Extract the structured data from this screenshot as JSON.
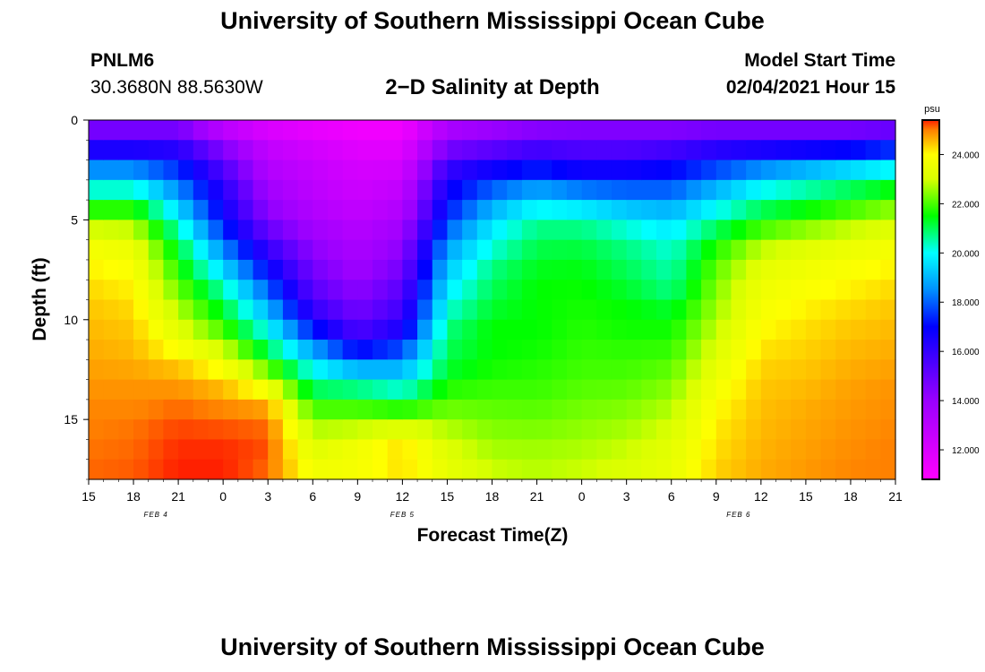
{
  "header": {
    "title": "University of Southern Mississippi Ocean Cube",
    "station_id": "PNLM6",
    "station_coords": "30.3680N 88.5630W",
    "plot_title": "2−D Salinity at Depth",
    "model_start_label": "Model Start Time",
    "model_start_value": "02/04/2021 Hour 15"
  },
  "footer": {
    "title": "University of Southern Mississippi Ocean Cube"
  },
  "chart_data": {
    "type": "heatmap",
    "title": "2-D Salinity at Depth",
    "xlabel": "Forecast Time(Z)",
    "ylabel": "Depth (ft)",
    "x_tick_labels": [
      "15",
      "18",
      "21",
      "0",
      "3",
      "6",
      "9",
      "12",
      "15",
      "18",
      "21",
      "0",
      "3",
      "6",
      "9",
      "12",
      "15",
      "18",
      "21"
    ],
    "date_labels": [
      {
        "label": "FEB 4",
        "tick_index": 1.5
      },
      {
        "label": "FEB 5",
        "tick_index": 7
      },
      {
        "label": "FEB 6",
        "tick_index": 14.5
      }
    ],
    "x_range_hours": [
      0,
      54
    ],
    "ylim": [
      0,
      18
    ],
    "y_ticks": [
      0,
      5,
      10,
      15
    ],
    "colorbar": {
      "unit": "psu",
      "range": [
        10.8,
        25.4
      ],
      "ticks": [
        "12.000",
        "14.000",
        "16.000",
        "18.000",
        "20.000",
        "22.000",
        "24.000"
      ],
      "tick_values": [
        12,
        14,
        16,
        18,
        20,
        22,
        24
      ],
      "colors": [
        {
          "v": 10.8,
          "c": "#ff00ff"
        },
        {
          "v": 14.0,
          "c": "#9a00ff"
        },
        {
          "v": 17.0,
          "c": "#0000ff"
        },
        {
          "v": 18.5,
          "c": "#0090ff"
        },
        {
          "v": 20.0,
          "c": "#00ffff"
        },
        {
          "v": 21.5,
          "c": "#00ff00"
        },
        {
          "v": 23.0,
          "c": "#d8ff00"
        },
        {
          "v": 24.0,
          "c": "#ffff00"
        },
        {
          "v": 25.0,
          "c": "#ff8000"
        },
        {
          "v": 25.4,
          "c": "#ff2000"
        }
      ]
    },
    "salinity_profiles": {
      "depths_ft": [
        0,
        1,
        2,
        3,
        4,
        5,
        6,
        7,
        8,
        9,
        10,
        11,
        12,
        13,
        14,
        15,
        16,
        17,
        18
      ],
      "profiles": [
        {
          "hour": 0,
          "values": [
            14.0,
            15.5,
            17.5,
            19.5,
            21.0,
            22.5,
            23.5,
            24.0,
            24.2,
            24.4,
            24.5,
            24.6,
            24.7,
            24.8,
            24.9,
            25.0,
            25.0,
            25.1,
            25.1
          ]
        },
        {
          "hour": 3,
          "values": [
            14.0,
            15.5,
            17.5,
            19.5,
            21.0,
            22.5,
            23.3,
            23.8,
            24.0,
            24.2,
            24.4,
            24.5,
            24.6,
            24.8,
            24.9,
            25.0,
            25.1,
            25.1,
            25.2
          ]
        },
        {
          "hour": 6,
          "values": [
            14.0,
            15.5,
            17.0,
            18.0,
            19.0,
            20.0,
            21.0,
            21.5,
            22.0,
            22.5,
            23.0,
            23.5,
            24.3,
            24.7,
            25.0,
            25.2,
            25.3,
            25.4,
            25.4
          ]
        },
        {
          "hour": 9,
          "values": [
            12.0,
            14.0,
            15.0,
            16.0,
            16.5,
            17.0,
            18.0,
            19.0,
            20.0,
            21.0,
            21.5,
            22.5,
            23.5,
            24.3,
            24.8,
            25.1,
            25.3,
            25.4,
            25.4
          ]
        },
        {
          "hour": 12,
          "values": [
            11.5,
            12.5,
            13.0,
            13.5,
            14.0,
            14.5,
            15.5,
            16.5,
            17.5,
            18.5,
            19.5,
            20.5,
            21.5,
            23.0,
            24.5,
            25.0,
            25.2,
            25.2,
            25.0
          ]
        },
        {
          "hour": 15,
          "values": [
            11.2,
            12.0,
            12.5,
            12.8,
            13.0,
            13.5,
            14.0,
            14.5,
            15.0,
            15.5,
            16.5,
            18.0,
            19.5,
            20.5,
            21.5,
            22.5,
            23.0,
            23.5,
            23.8
          ]
        },
        {
          "hour": 18,
          "values": [
            11.0,
            11.5,
            12.0,
            12.3,
            12.5,
            13.0,
            13.3,
            13.6,
            14.0,
            14.5,
            15.0,
            16.0,
            18.0,
            20.0,
            21.5,
            22.5,
            23.3,
            24.0,
            23.5
          ]
        },
        {
          "hour": 21,
          "values": [
            11.0,
            11.5,
            12.0,
            12.5,
            13.0,
            13.5,
            14.0,
            14.5,
            15.0,
            15.5,
            16.0,
            17.0,
            18.5,
            19.5,
            21.0,
            22.5,
            24.0,
            24.5,
            24.0
          ]
        },
        {
          "hour": 24,
          "values": [
            13.0,
            14.0,
            15.5,
            16.5,
            17.0,
            17.5,
            18.5,
            19.0,
            19.5,
            20.0,
            20.5,
            21.0,
            21.0,
            21.5,
            22.0,
            22.5,
            23.0,
            23.3,
            23.5
          ]
        },
        {
          "hour": 27,
          "values": [
            13.5,
            14.5,
            16.0,
            17.5,
            18.5,
            19.5,
            20.0,
            20.5,
            21.0,
            21.0,
            21.5,
            21.5,
            21.5,
            21.8,
            22.0,
            22.3,
            22.5,
            22.8,
            23.0
          ]
        },
        {
          "hour": 30,
          "values": [
            13.8,
            15.0,
            16.5,
            18.0,
            19.5,
            20.5,
            21.0,
            21.2,
            21.5,
            21.5,
            21.5,
            21.5,
            21.7,
            21.8,
            22.0,
            22.2,
            22.5,
            22.7,
            22.8
          ]
        },
        {
          "hour": 33,
          "values": [
            14.0,
            15.0,
            16.0,
            17.5,
            19.0,
            20.5,
            21.0,
            21.3,
            21.5,
            21.6,
            21.7,
            21.8,
            21.9,
            22.0,
            22.2,
            22.4,
            22.6,
            22.8,
            23.0
          ]
        },
        {
          "hour": 36,
          "values": [
            14.0,
            15.0,
            16.0,
            17.5,
            18.5,
            20.0,
            20.5,
            21.0,
            21.0,
            21.5,
            21.5,
            21.7,
            21.9,
            22.0,
            22.3,
            22.5,
            22.8,
            23.0,
            23.2
          ]
        },
        {
          "hour": 39,
          "values": [
            14.0,
            15.0,
            16.5,
            17.5,
            18.5,
            19.5,
            20.0,
            20.5,
            20.5,
            21.0,
            21.5,
            21.7,
            22.0,
            22.3,
            22.6,
            22.9,
            23.2,
            23.4,
            23.5
          ]
        },
        {
          "hour": 42,
          "values": [
            14.0,
            15.5,
            17.0,
            18.5,
            19.5,
            20.5,
            21.5,
            22.0,
            22.3,
            22.5,
            22.7,
            23.0,
            23.3,
            23.6,
            23.9,
            24.1,
            24.2,
            24.3,
            24.4
          ]
        },
        {
          "hour": 45,
          "values": [
            14.0,
            15.5,
            17.5,
            19.5,
            20.5,
            21.5,
            22.5,
            23.2,
            23.5,
            23.7,
            23.9,
            24.1,
            24.3,
            24.4,
            24.5,
            24.5,
            24.6,
            24.6,
            24.7
          ]
        },
        {
          "hour": 48,
          "values": [
            14.0,
            15.5,
            18.0,
            20.0,
            21.0,
            22.0,
            23.0,
            23.5,
            23.8,
            24.0,
            24.2,
            24.3,
            24.4,
            24.5,
            24.6,
            24.7,
            24.7,
            24.8,
            24.8
          ]
        },
        {
          "hour": 51,
          "values": [
            14.0,
            15.5,
            18.5,
            20.5,
            21.5,
            22.5,
            23.3,
            23.8,
            24.0,
            24.2,
            24.4,
            24.5,
            24.6,
            24.7,
            24.8,
            24.8,
            24.9,
            24.9,
            25.0
          ]
        },
        {
          "hour": 54,
          "values": [
            14.0,
            16.0,
            19.0,
            21.0,
            22.0,
            23.0,
            23.5,
            24.0,
            24.2,
            24.4,
            24.5,
            24.6,
            24.7,
            24.8,
            24.9,
            24.9,
            25.0,
            25.0,
            25.0
          ]
        }
      ]
    }
  }
}
